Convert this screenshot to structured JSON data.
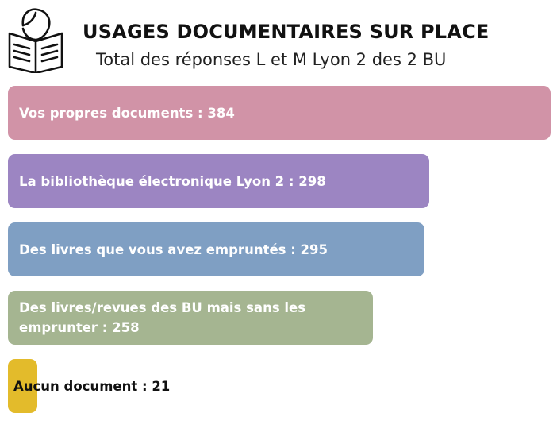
{
  "header": {
    "title": "USAGES DOCUMENTAIRES SUR PLACE",
    "subtitle": "Total des réponses L et M Lyon 2 des 2 BU",
    "logo_icon": "reader-book-icon"
  },
  "chart_data": {
    "type": "bar",
    "orientation": "horizontal",
    "title": "USAGES DOCUMENTAIRES SUR PLACE",
    "subtitle": "Total des réponses L et M Lyon 2 des 2 BU",
    "categories": [
      "Vos propres documents",
      "La bibliothèque électronique Lyon 2",
      "Des livres que vous avez empruntés",
      "Des livres/revues des BU mais sans les emprunter",
      "Aucun document"
    ],
    "values": [
      384,
      298,
      295,
      258,
      21
    ],
    "labels": [
      "Vos propres documents : 384",
      "La bibliothèque électronique Lyon 2 : 298",
      "Des livres que vous avez empruntés : 295",
      "Des livres/revues des BU mais sans les emprunter : 258",
      "Aucun document :  21"
    ],
    "colors": [
      "#d193a7",
      "#9c85c2",
      "#7f9fc3",
      "#a5b591",
      "#e3bb2b"
    ],
    "label_colors": [
      "#ffffff",
      "#ffffff",
      "#ffffff",
      "#ffffff",
      "#111111"
    ],
    "xlim": [
      0,
      384
    ],
    "grid": false,
    "legend": "none"
  }
}
